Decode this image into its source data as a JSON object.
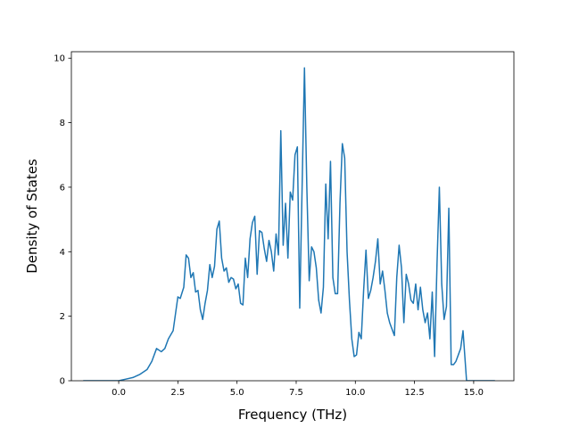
{
  "chart_data": {
    "type": "line",
    "title": "",
    "xlabel": "Frequency (THz)",
    "ylabel": "Density of States",
    "xlim": [
      -2.0,
      16.7
    ],
    "ylim": [
      0,
      10.2
    ],
    "xticks": [
      0.0,
      2.5,
      5.0,
      7.5,
      10.0,
      12.5,
      15.0
    ],
    "xtick_labels": [
      "0.0",
      "2.5",
      "5.0",
      "7.5",
      "10.0",
      "12.5",
      "15.0"
    ],
    "yticks": [
      0,
      2,
      4,
      6,
      8,
      10
    ],
    "ytick_labels": [
      "0",
      "2",
      "4",
      "6",
      "8",
      "10"
    ],
    "grid": false,
    "line_color": "#1f77b4",
    "series": [
      {
        "x": [
          -1.5,
          -0.5,
          0.0,
          0.3,
          0.6,
          0.9,
          1.2,
          1.4,
          1.6,
          1.8,
          1.95,
          2.1,
          2.3,
          2.5,
          2.6,
          2.75,
          2.85,
          2.95,
          3.05,
          3.15,
          3.25,
          3.35,
          3.45,
          3.55,
          3.65,
          3.75,
          3.85,
          3.95,
          4.05,
          4.15,
          4.25,
          4.35,
          4.45,
          4.55,
          4.65,
          4.75,
          4.85,
          4.95,
          5.05,
          5.15,
          5.25,
          5.35,
          5.45,
          5.55,
          5.65,
          5.75,
          5.85,
          5.95,
          6.05,
          6.15,
          6.25,
          6.35,
          6.45,
          6.55,
          6.65,
          6.75,
          6.85,
          6.95,
          7.05,
          7.15,
          7.25,
          7.35,
          7.45,
          7.55,
          7.65,
          7.75,
          7.85,
          7.95,
          8.05,
          8.15,
          8.25,
          8.35,
          8.45,
          8.55,
          8.65,
          8.75,
          8.85,
          8.95,
          9.05,
          9.15,
          9.25,
          9.35,
          9.45,
          9.55,
          9.65,
          9.75,
          9.85,
          9.95,
          10.05,
          10.15,
          10.25,
          10.35,
          10.45,
          10.55,
          10.65,
          10.75,
          10.85,
          10.95,
          11.05,
          11.15,
          11.25,
          11.35,
          11.45,
          11.55,
          11.65,
          11.75,
          11.85,
          11.95,
          12.05,
          12.15,
          12.25,
          12.35,
          12.45,
          12.55,
          12.65,
          12.75,
          12.85,
          12.95,
          13.05,
          13.15,
          13.25,
          13.35,
          13.45,
          13.55,
          13.65,
          13.75,
          13.85,
          13.95,
          14.05,
          14.15,
          14.25,
          14.35,
          14.45,
          14.55,
          14.7,
          15.0,
          15.5,
          15.9
        ],
        "y": [
          0,
          0,
          0,
          0.05,
          0.1,
          0.2,
          0.35,
          0.6,
          1.0,
          0.9,
          1.0,
          1.3,
          1.55,
          2.6,
          2.55,
          2.9,
          3.9,
          3.8,
          3.2,
          3.35,
          2.75,
          2.8,
          2.2,
          1.9,
          2.4,
          2.8,
          3.6,
          3.2,
          3.55,
          4.7,
          4.95,
          3.8,
          3.4,
          3.5,
          3.05,
          3.2,
          3.15,
          2.85,
          3.0,
          2.4,
          2.35,
          3.8,
          3.2,
          4.4,
          4.9,
          5.1,
          3.3,
          4.65,
          4.6,
          4.1,
          3.7,
          4.35,
          4.0,
          3.4,
          4.55,
          3.9,
          7.75,
          4.2,
          5.5,
          3.8,
          5.85,
          5.6,
          7.0,
          7.25,
          2.25,
          6.0,
          9.7,
          6.0,
          3.1,
          4.15,
          4.0,
          3.5,
          2.5,
          2.1,
          2.9,
          6.1,
          4.4,
          6.8,
          3.2,
          2.7,
          2.7,
          5.5,
          7.35,
          6.9,
          4.0,
          2.5,
          1.3,
          0.75,
          0.8,
          1.5,
          1.3,
          2.8,
          4.05,
          2.55,
          2.8,
          3.2,
          3.7,
          4.4,
          3.0,
          3.4,
          2.8,
          2.1,
          1.8,
          1.6,
          1.4,
          3.2,
          4.2,
          3.5,
          1.8,
          3.3,
          3.0,
          2.5,
          2.4,
          3.0,
          2.2,
          2.9,
          2.2,
          1.8,
          2.1,
          1.3,
          2.75,
          0.75,
          3.6,
          6.0,
          3.0,
          1.9,
          2.3,
          5.35,
          0.5,
          0.5,
          0.6,
          0.8,
          1.0,
          1.55,
          0,
          0,
          0,
          0
        ]
      }
    ]
  }
}
